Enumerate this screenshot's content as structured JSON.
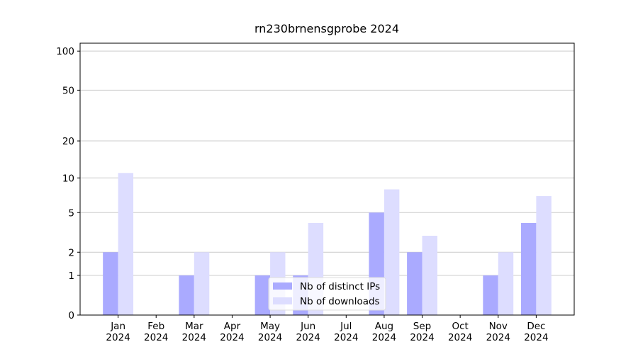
{
  "chart_data": {
    "type": "bar",
    "title": "rn230brnensgprobe 2024",
    "categories": [
      "Jan\n2024",
      "Feb\n2024",
      "Mar\n2024",
      "Apr\n2024",
      "May\n2024",
      "Jun\n2024",
      "Jul\n2024",
      "Aug\n2024",
      "Sep\n2024",
      "Oct\n2024",
      "Nov\n2024",
      "Dec\n2024"
    ],
    "series": [
      {
        "name": "Nb of distinct IPs",
        "color": "#aaaaff",
        "values": [
          2,
          0,
          1,
          0,
          1,
          1,
          0,
          5,
          2,
          0,
          1,
          4
        ]
      },
      {
        "name": "Nb of downloads",
        "color": "#ddddff",
        "values": [
          11,
          0,
          2,
          0,
          2,
          4,
          0,
          8,
          3,
          0,
          2,
          7
        ]
      }
    ],
    "yscale": "log1p",
    "ylim": [
      0,
      115
    ],
    "yticks": [
      0,
      1,
      2,
      5,
      10,
      20,
      50,
      100
    ],
    "grid": true,
    "legend": "lower center"
  }
}
